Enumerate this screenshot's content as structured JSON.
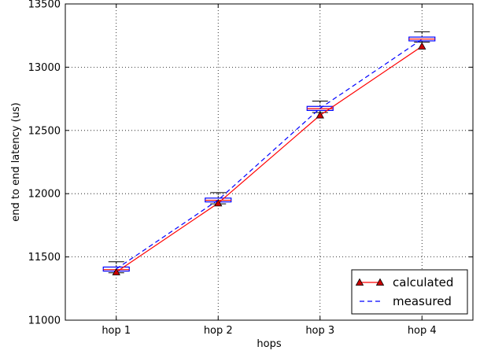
{
  "chart_data": {
    "type": "line",
    "title": "",
    "xlabel": "hops",
    "ylabel": "end to end latency (us)",
    "categories": [
      "hop 1",
      "hop 2",
      "hop 3",
      "hop 4"
    ],
    "ylim": [
      11000,
      13500
    ],
    "yticks": [
      11000,
      11500,
      12000,
      12500,
      13000,
      13500
    ],
    "grid": true,
    "legend_position": "lower-right",
    "series": [
      {
        "name": "calculated",
        "values": [
          11380,
          11925,
          12620,
          13165
        ],
        "color": "#ff0000",
        "line_style": "solid",
        "marker": "triangle",
        "marker_fill": "#cc0000"
      },
      {
        "name": "measured",
        "values": [
          11405,
          11950,
          12675,
          13220
        ],
        "color": "#0000ff",
        "line_style": "dashed"
      }
    ],
    "boxplots": [
      {
        "category": "hop 1",
        "whisker_low": 11375,
        "q1": 11388,
        "median": 11400,
        "mean": 11405,
        "q3": 11420,
        "whisker_high": 11462
      },
      {
        "category": "hop 2",
        "whisker_low": 11920,
        "q1": 11935,
        "median": 11948,
        "mean": 11950,
        "q3": 11965,
        "whisker_high": 12008
      },
      {
        "category": "hop 3",
        "whisker_low": 12642,
        "q1": 12658,
        "median": 12672,
        "mean": 12675,
        "q3": 12690,
        "whisker_high": 12732
      },
      {
        "category": "hop 4",
        "whisker_low": 13198,
        "q1": 13208,
        "median": 13222,
        "mean": 13220,
        "q3": 13238,
        "whisker_high": 13280
      }
    ]
  }
}
